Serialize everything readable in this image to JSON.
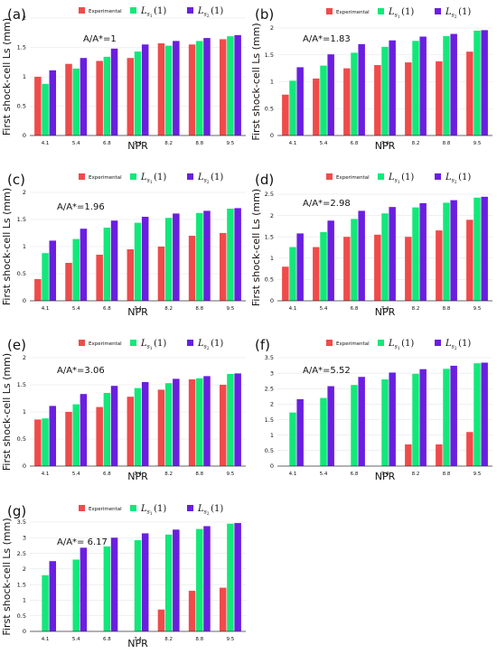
{
  "colors": {
    "experimental": "#f04b4b",
    "ls1": "#12e87a",
    "ls2": "#6a1fe0",
    "axis": "#333333",
    "grid": "#e6e6e6"
  },
  "legend": {
    "experimental": "Experimental",
    "ls1_main": "L",
    "ls1_sub": "s",
    "ls1_subsub": "1",
    "ls1_arg": "(1)",
    "ls2_main": "L",
    "ls2_sub": "s",
    "ls2_subsub": "2",
    "ls2_arg": "(1)"
  },
  "chart_data": [
    {
      "type": "bar",
      "panel_label": "(a)",
      "annotation": "A/A*=1",
      "xlabel": "NPR",
      "ylabel": "First shock-cell Ls (mm)",
      "categories": [
        "4.1",
        "5.4",
        "6.8",
        "7.4",
        "8.2",
        "8.8",
        "9.5"
      ],
      "ylim": [
        0,
        2
      ],
      "yticks": [
        "0",
        "0.5",
        "1",
        "1.5",
        "2"
      ],
      "series": [
        {
          "name": "Experimental",
          "values": [
            1.0,
            1.22,
            1.27,
            1.32,
            1.57,
            1.55,
            1.64
          ]
        },
        {
          "name": "Ls1(1)",
          "values": [
            0.88,
            1.14,
            1.34,
            1.43,
            1.53,
            1.61,
            1.69
          ]
        },
        {
          "name": "Ls2(1)",
          "values": [
            1.11,
            1.32,
            1.48,
            1.55,
            1.61,
            1.66,
            1.71
          ]
        }
      ]
    },
    {
      "type": "bar",
      "panel_label": "(b)",
      "annotation": "A/A*=1.83",
      "xlabel": "NPR",
      "ylabel": "First shock-cell Ls (mm)",
      "categories": [
        "4.1",
        "5.4",
        "6.8",
        "7.4",
        "8.2",
        "8.8",
        "9.5"
      ],
      "ylim": [
        0,
        2
      ],
      "yticks": [
        "0",
        "0.5",
        "1",
        "1.5",
        "2"
      ],
      "series": [
        {
          "name": "Experimental",
          "values": [
            0.76,
            1.06,
            1.25,
            1.31,
            1.36,
            1.38,
            1.56
          ]
        },
        {
          "name": "Ls1(1)",
          "values": [
            1.02,
            1.3,
            1.54,
            1.65,
            1.76,
            1.85,
            1.95
          ]
        },
        {
          "name": "Ls2(1)",
          "values": [
            1.27,
            1.51,
            1.7,
            1.77,
            1.84,
            1.89,
            1.96
          ]
        }
      ]
    },
    {
      "type": "bar",
      "panel_label": "(c)",
      "annotation": "A/A*=1.96",
      "xlabel": "NPR",
      "ylabel": "First shock-cell Ls (mm)",
      "categories": [
        "4.1",
        "5.4",
        "6.8",
        "7.4",
        "8.2",
        "8.8",
        "9.5"
      ],
      "ylim": [
        0,
        2
      ],
      "yticks": [
        "0",
        "0.5",
        "1",
        "1.5",
        "2"
      ],
      "series": [
        {
          "name": "Experimental",
          "values": [
            0.4,
            0.7,
            0.85,
            0.95,
            1.0,
            1.2,
            1.25
          ]
        },
        {
          "name": "Ls1(1)",
          "values": [
            0.88,
            1.14,
            1.35,
            1.44,
            1.53,
            1.62,
            1.7
          ]
        },
        {
          "name": "Ls2(1)",
          "values": [
            1.11,
            1.33,
            1.48,
            1.55,
            1.61,
            1.66,
            1.71
          ]
        }
      ]
    },
    {
      "type": "bar",
      "panel_label": "(d)",
      "annotation": "A/A*=2.98",
      "xlabel": "NPR",
      "ylabel": "First shock-cell Ls (mm)",
      "categories": [
        "4.1",
        "5.4",
        "6.8",
        "7.4",
        "8.2",
        "8.8",
        "9.5"
      ],
      "ylim": [
        0,
        2.5
      ],
      "yticks": [
        "0",
        "0.5",
        "1",
        "1.5",
        "2",
        "2.5"
      ],
      "series": [
        {
          "name": "Experimental",
          "values": [
            0.8,
            1.26,
            1.5,
            1.55,
            1.5,
            1.65,
            1.9
          ]
        },
        {
          "name": "Ls1(1)",
          "values": [
            1.26,
            1.61,
            1.92,
            2.05,
            2.19,
            2.3,
            2.42
          ]
        },
        {
          "name": "Ls2(1)",
          "values": [
            1.58,
            1.88,
            2.11,
            2.2,
            2.29,
            2.36,
            2.44
          ]
        }
      ]
    },
    {
      "type": "bar",
      "panel_label": "(e)",
      "annotation": "A/A*=3.06",
      "xlabel": "NPR",
      "ylabel": "First shock-cell Ls (mm)",
      "categories": [
        "4.1",
        "5.4",
        "6.8",
        "7.4",
        "8.2",
        "8.8",
        "9.5"
      ],
      "ylim": [
        0,
        2
      ],
      "yticks": [
        "0",
        "0.5",
        "1",
        "1.5",
        "2"
      ],
      "series": [
        {
          "name": "Experimental",
          "values": [
            0.86,
            1.0,
            1.09,
            1.28,
            1.41,
            1.6,
            1.5
          ]
        },
        {
          "name": "Ls1(1)",
          "values": [
            0.88,
            1.14,
            1.35,
            1.44,
            1.53,
            1.62,
            1.7
          ]
        },
        {
          "name": "Ls2(1)",
          "values": [
            1.11,
            1.33,
            1.48,
            1.55,
            1.61,
            1.66,
            1.71
          ]
        }
      ]
    },
    {
      "type": "bar",
      "panel_label": "(f)",
      "annotation": "A/A*=5.52",
      "xlabel": "NPR",
      "ylabel": "",
      "categories": [
        "4.1",
        "5.4",
        "6.8",
        "7.4",
        "8.2",
        "8.8",
        "9.5"
      ],
      "ylim": [
        0,
        3.5
      ],
      "yticks": [
        "0",
        "0.5",
        "1",
        "1.5",
        "2",
        "2.5",
        "3",
        "3.5"
      ],
      "series": [
        {
          "name": "Experimental",
          "values": [
            0,
            0,
            0,
            0,
            0.7,
            0.7,
            1.1
          ]
        },
        {
          "name": "Ls1(1)",
          "values": [
            1.73,
            2.2,
            2.62,
            2.8,
            2.98,
            3.14,
            3.32
          ]
        },
        {
          "name": "Ls2(1)",
          "values": [
            2.16,
            2.58,
            2.88,
            3.02,
            3.13,
            3.24,
            3.34
          ]
        }
      ]
    },
    {
      "type": "bar",
      "panel_label": "(g)",
      "annotation": "A/A*= 6.17",
      "xlabel": "NPR",
      "ylabel": "First shock-cell Ls (mm)",
      "categories": [
        "4.1",
        "5.4",
        "6.8",
        "7.4",
        "8.2",
        "8.8",
        "9.5"
      ],
      "ylim": [
        0,
        3.5
      ],
      "yticks": [
        "0",
        "0.5",
        "1",
        "1.5",
        "2",
        "2.5",
        "3",
        "3.5"
      ],
      "series": [
        {
          "name": "Experimental",
          "values": [
            0,
            0,
            0,
            0,
            0.7,
            1.3,
            1.4
          ]
        },
        {
          "name": "Ls1(1)",
          "values": [
            1.8,
            2.3,
            2.72,
            2.92,
            3.1,
            3.28,
            3.45
          ]
        },
        {
          "name": "Ls2(1)",
          "values": [
            2.25,
            2.68,
            3.0,
            3.14,
            3.26,
            3.37,
            3.47
          ]
        }
      ]
    }
  ]
}
